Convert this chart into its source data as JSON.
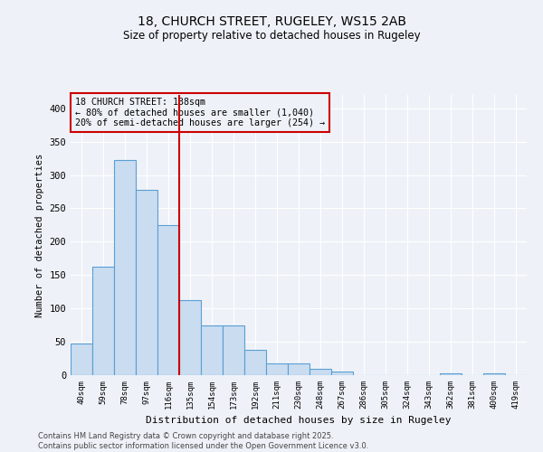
{
  "title1": "18, CHURCH STREET, RUGELEY, WS15 2AB",
  "title2": "Size of property relative to detached houses in Rugeley",
  "xlabel": "Distribution of detached houses by size in Rugeley",
  "ylabel": "Number of detached properties",
  "categories": [
    "40sqm",
    "59sqm",
    "78sqm",
    "97sqm",
    "116sqm",
    "135sqm",
    "154sqm",
    "173sqm",
    "192sqm",
    "211sqm",
    "230sqm",
    "248sqm",
    "267sqm",
    "286sqm",
    "305sqm",
    "324sqm",
    "343sqm",
    "362sqm",
    "381sqm",
    "400sqm",
    "419sqm"
  ],
  "values": [
    48,
    162,
    323,
    278,
    225,
    112,
    75,
    75,
    38,
    17,
    17,
    10,
    5,
    0,
    0,
    0,
    0,
    3,
    0,
    3,
    0
  ],
  "bar_color": "#c9dcf0",
  "bar_edge_color": "#5a9fd4",
  "vline_x": 5,
  "vline_color": "#cc0000",
  "annotation_title": "18 CHURCH STREET: 138sqm",
  "annotation_line1": "← 80% of detached houses are smaller (1,040)",
  "annotation_line2": "20% of semi-detached houses are larger (254) →",
  "annotation_box_color": "#cc0000",
  "ylim": [
    0,
    420
  ],
  "yticks": [
    0,
    50,
    100,
    150,
    200,
    250,
    300,
    350,
    400
  ],
  "footer1": "Contains HM Land Registry data © Crown copyright and database right 2025.",
  "footer2": "Contains public sector information licensed under the Open Government Licence v3.0.",
  "background_color": "#eef2f8",
  "grid_color": "#ffffff"
}
